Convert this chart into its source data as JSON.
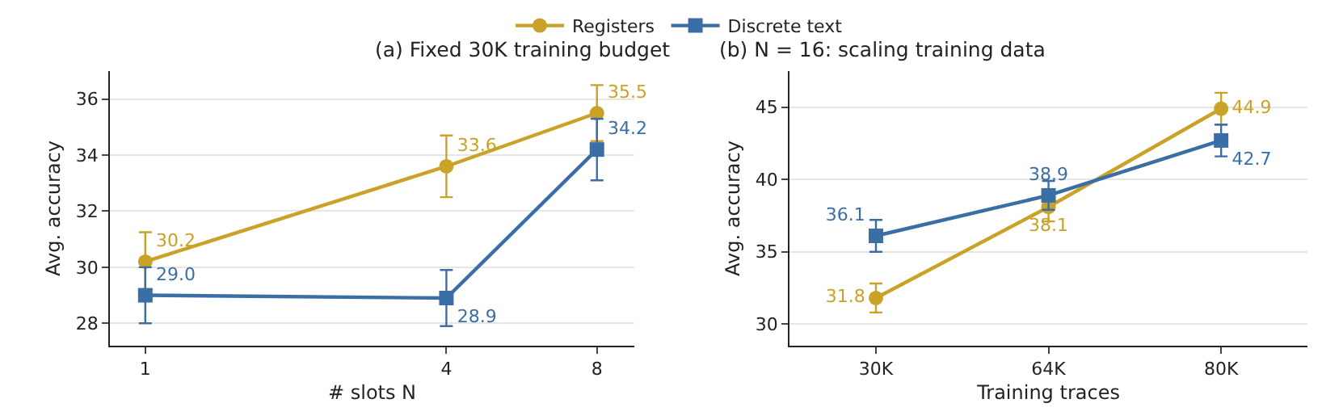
{
  "chart_data": [
    {
      "type": "line",
      "title": "(a) Fixed 30K training budget",
      "xlabel": "# slots N",
      "ylabel": "Avg. accuracy",
      "x": [
        1,
        4,
        8
      ],
      "xlim": [
        0.85,
        9.5
      ],
      "xticks": [
        1,
        4,
        8
      ],
      "log": "x",
      "ylim": [
        27.2,
        37
      ],
      "yticks": [
        28,
        30,
        32,
        34,
        36
      ],
      "grid": "y",
      "legend": "top",
      "line_style": "solid",
      "series": [
        {
          "name": "Registers",
          "color": "#c9a227",
          "marker": "circle",
          "values": [
            30.2,
            33.6,
            35.5
          ],
          "errors": [
            1.05,
            1.1,
            1.0
          ],
          "value_labels": [
            "30.2",
            "33.6",
            "35.5"
          ]
        },
        {
          "name": "Discrete text",
          "color": "#3b6ea5",
          "marker": "square",
          "values": [
            29.0,
            28.9,
            34.2
          ],
          "errors": [
            1.0,
            1.0,
            1.1
          ],
          "value_labels": [
            "29.0",
            "28.9",
            "34.2"
          ]
        }
      ]
    },
    {
      "type": "line",
      "title": "(b) N = 16: scaling training data",
      "xlabel": "Training traces",
      "ylabel": "Avg. accuracy",
      "categories": [
        "30K",
        "64K",
        "80K"
      ],
      "ylim": [
        28.5,
        47.5
      ],
      "yticks": [
        30,
        35,
        40,
        45
      ],
      "grid": "y",
      "line_style": "solid",
      "series": [
        {
          "color": "#c9a227",
          "marker": "circle",
          "values": [
            31.8,
            38.1,
            44.9
          ],
          "errors": [
            1.0,
            1.0,
            1.1
          ],
          "value_labels": [
            "31.8",
            "38.1",
            "44.9"
          ]
        },
        {
          "color": "#3b6ea5",
          "marker": "square",
          "values": [
            36.1,
            38.9,
            42.7
          ],
          "errors": [
            1.1,
            1.0,
            1.1
          ],
          "value_labels": [
            "36.1",
            "38.9",
            "42.7"
          ]
        }
      ]
    }
  ]
}
